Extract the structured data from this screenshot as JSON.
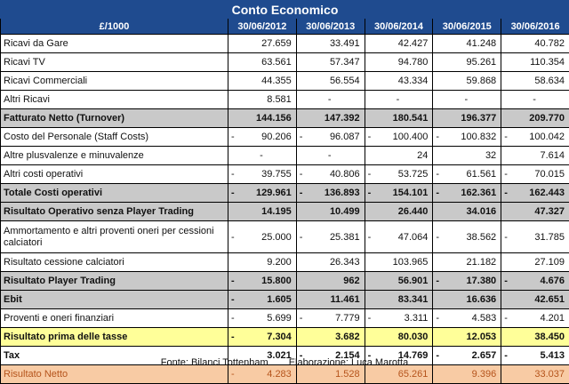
{
  "title": "Conto Economico",
  "header": {
    "label": "£/1000",
    "years": [
      "30/06/2012",
      "30/06/2013",
      "30/06/2014",
      "30/06/2015",
      "30/06/2016"
    ]
  },
  "rows": [
    {
      "label": "Ricavi da Gare",
      "style": "",
      "cells": [
        {
          "v": "27.659",
          "n": false
        },
        {
          "v": "33.491",
          "n": false
        },
        {
          "v": "42.427",
          "n": false
        },
        {
          "v": "41.248",
          "n": false
        },
        {
          "v": "40.782",
          "n": false
        }
      ]
    },
    {
      "label": "Ricavi TV",
      "style": "",
      "cells": [
        {
          "v": "63.561",
          "n": false
        },
        {
          "v": "57.347",
          "n": false
        },
        {
          "v": "94.780",
          "n": false
        },
        {
          "v": "95.261",
          "n": false
        },
        {
          "v": "110.354",
          "n": false
        }
      ]
    },
    {
      "label": "Ricavi Commerciali",
      "style": "",
      "cells": [
        {
          "v": "44.355",
          "n": false
        },
        {
          "v": "56.554",
          "n": false
        },
        {
          "v": "43.334",
          "n": false
        },
        {
          "v": "59.868",
          "n": false
        },
        {
          "v": "58.634",
          "n": false
        }
      ]
    },
    {
      "label": "Altri Ricavi",
      "style": "",
      "cells": [
        {
          "v": "8.581",
          "n": false
        },
        {
          "v": "-",
          "n": false,
          "mid": true
        },
        {
          "v": "-",
          "n": false,
          "mid": true
        },
        {
          "v": "-",
          "n": false,
          "mid": true
        },
        {
          "v": "-",
          "n": false,
          "mid": true
        }
      ]
    },
    {
      "label": "Fatturato Netto (Turnover)",
      "style": "grey",
      "cells": [
        {
          "v": "144.156",
          "n": false
        },
        {
          "v": "147.392",
          "n": false
        },
        {
          "v": "180.541",
          "n": false
        },
        {
          "v": "196.377",
          "n": false
        },
        {
          "v": "209.770",
          "n": false
        }
      ]
    },
    {
      "label": "Costo del Personale (Staff Costs)",
      "style": "",
      "cells": [
        {
          "v": "90.206",
          "n": true
        },
        {
          "v": "96.087",
          "n": true
        },
        {
          "v": "100.400",
          "n": true
        },
        {
          "v": "100.832",
          "n": true
        },
        {
          "v": "100.042",
          "n": true
        }
      ]
    },
    {
      "label": "Altre plusvalenze e minuvalenze",
      "style": "",
      "cells": [
        {
          "v": "-",
          "n": false,
          "mid": true
        },
        {
          "v": "-",
          "n": false,
          "mid": true
        },
        {
          "v": "24",
          "n": false
        },
        {
          "v": "32",
          "n": false
        },
        {
          "v": "7.614",
          "n": false
        }
      ]
    },
    {
      "label": "Altri costi operativi",
      "style": "",
      "cells": [
        {
          "v": "39.755",
          "n": true
        },
        {
          "v": "40.806",
          "n": true
        },
        {
          "v": "53.725",
          "n": true
        },
        {
          "v": "61.561",
          "n": true
        },
        {
          "v": "70.015",
          "n": true
        }
      ]
    },
    {
      "label": "Totale Costi operativi",
      "style": "grey",
      "cells": [
        {
          "v": "129.961",
          "n": true
        },
        {
          "v": "136.893",
          "n": true
        },
        {
          "v": "154.101",
          "n": true
        },
        {
          "v": "162.361",
          "n": true
        },
        {
          "v": "162.443",
          "n": true
        }
      ]
    },
    {
      "label": "Risultato Operativo senza Player Trading",
      "style": "grey",
      "cells": [
        {
          "v": "14.195",
          "n": false
        },
        {
          "v": "10.499",
          "n": false
        },
        {
          "v": "26.440",
          "n": false
        },
        {
          "v": "34.016",
          "n": false
        },
        {
          "v": "47.327",
          "n": false
        }
      ]
    },
    {
      "label": "Ammortamento e altri proventi oneri per cessioni calciatori",
      "style": "tall",
      "cells": [
        {
          "v": "25.000",
          "n": true
        },
        {
          "v": "25.381",
          "n": true
        },
        {
          "v": "47.064",
          "n": true
        },
        {
          "v": "38.562",
          "n": true
        },
        {
          "v": "31.785",
          "n": true
        }
      ]
    },
    {
      "label": "Risultato cessione calciatori",
      "style": "",
      "cells": [
        {
          "v": "9.200",
          "n": false
        },
        {
          "v": "26.343",
          "n": false
        },
        {
          "v": "103.965",
          "n": false
        },
        {
          "v": "21.182",
          "n": false
        },
        {
          "v": "27.109",
          "n": false
        }
      ]
    },
    {
      "label": "Risultato Player Trading",
      "style": "grey",
      "cells": [
        {
          "v": "15.800",
          "n": true
        },
        {
          "v": "962",
          "n": false
        },
        {
          "v": "56.901",
          "n": false
        },
        {
          "v": "17.380",
          "n": true
        },
        {
          "v": "4.676",
          "n": true
        }
      ]
    },
    {
      "label": "Ebit",
      "style": "grey",
      "cells": [
        {
          "v": "1.605",
          "n": true
        },
        {
          "v": "11.461",
          "n": false
        },
        {
          "v": "83.341",
          "n": false
        },
        {
          "v": "16.636",
          "n": false
        },
        {
          "v": "42.651",
          "n": false
        }
      ]
    },
    {
      "label": "Proventi e oneri finanziari",
      "style": "",
      "cells": [
        {
          "v": "5.699",
          "n": true
        },
        {
          "v": "7.779",
          "n": true
        },
        {
          "v": "3.311",
          "n": true
        },
        {
          "v": "4.583",
          "n": true
        },
        {
          "v": "4.201",
          "n": true
        }
      ]
    },
    {
      "label": "Risultato prima delle tasse",
      "style": "yellow",
      "cells": [
        {
          "v": "7.304",
          "n": true
        },
        {
          "v": "3.682",
          "n": false
        },
        {
          "v": "80.030",
          "n": false
        },
        {
          "v": "12.053",
          "n": false
        },
        {
          "v": "38.450",
          "n": false
        }
      ]
    },
    {
      "label": "Tax",
      "style": "bold",
      "cells": [
        {
          "v": "3.021",
          "n": false
        },
        {
          "v": "2.154",
          "n": true
        },
        {
          "v": "14.769",
          "n": true
        },
        {
          "v": "2.657",
          "n": true
        },
        {
          "v": "5.413",
          "n": true
        }
      ]
    },
    {
      "label": "Risultato Netto",
      "style": "salmon",
      "cells": [
        {
          "v": "4.283",
          "n": true
        },
        {
          "v": "1.528",
          "n": false
        },
        {
          "v": "65.261",
          "n": false
        },
        {
          "v": "9.396",
          "n": false
        },
        {
          "v": "33.037",
          "n": false
        }
      ]
    }
  ],
  "footer": {
    "source": "Fonte: Bilanci Tottenham",
    "author": "Elaborazione: Luca Marotta"
  },
  "colors": {
    "header_bg": "#1f4b8f",
    "subtotal_bg": "#c9c9c9",
    "pretax_bg": "#ffff99",
    "net_bg": "#f8cba4"
  }
}
